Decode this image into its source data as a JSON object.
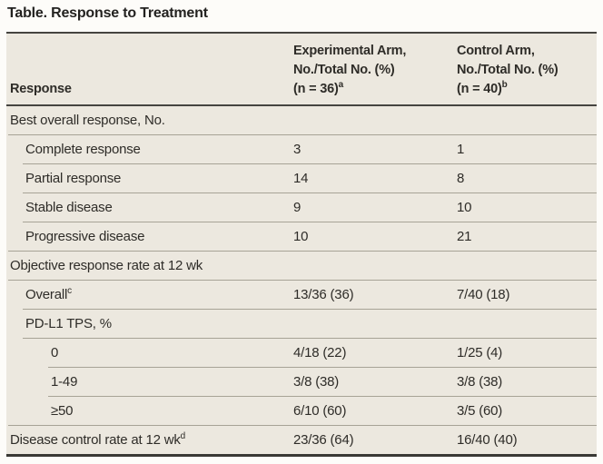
{
  "title": "Table. Response to Treatment",
  "table": {
    "columns": [
      {
        "label": "Response"
      },
      {
        "lines": [
          "Experimental Arm,",
          "No./Total No. (%)",
          "(n = 36)"
        ],
        "sup": "a"
      },
      {
        "lines": [
          "Control Arm,",
          "No./Total No. (%)",
          "(n = 40)"
        ],
        "sup": "b"
      }
    ],
    "rows": [
      {
        "label": "Best overall response, No.",
        "sup": "",
        "level": 0,
        "experimental": "",
        "control": ""
      },
      {
        "label": "Complete response",
        "sup": "",
        "level": 1,
        "experimental": "3",
        "control": "1"
      },
      {
        "label": "Partial response",
        "sup": "",
        "level": 1,
        "experimental": "14",
        "control": "8"
      },
      {
        "label": "Stable disease",
        "sup": "",
        "level": 1,
        "experimental": "9",
        "control": "10"
      },
      {
        "label": "Progressive disease",
        "sup": "",
        "level": 1,
        "experimental": "10",
        "control": "21"
      },
      {
        "label": "Objective response rate at 12 wk",
        "sup": "",
        "level": 0,
        "experimental": "",
        "control": ""
      },
      {
        "label": "Overall",
        "sup": "c",
        "level": 1,
        "experimental": "13/36 (36)",
        "control": "7/40 (18)"
      },
      {
        "label": "PD-L1 TPS, %",
        "sup": "",
        "level": 1,
        "experimental": "",
        "control": ""
      },
      {
        "label": "0",
        "sup": "",
        "level": 2,
        "experimental": "4/18 (22)",
        "control": "1/25 (4)"
      },
      {
        "label": "1-49",
        "sup": "",
        "level": 2,
        "experimental": "3/8 (38)",
        "control": "3/8 (38)"
      },
      {
        "label": "≥50",
        "sup": "",
        "level": 2,
        "experimental": "6/10 (60)",
        "control": "3/5 (60)"
      },
      {
        "label": "Disease control rate at 12 wk",
        "sup": "d",
        "level": 0,
        "experimental": "23/36 (64)",
        "control": "16/40 (40)"
      }
    ]
  },
  "colors": {
    "table_background": "#ece8df",
    "page_background": "#fdfcf9",
    "dark_rule": "#454440",
    "row_separator": "#a7a396",
    "text": "#2e2c28"
  }
}
